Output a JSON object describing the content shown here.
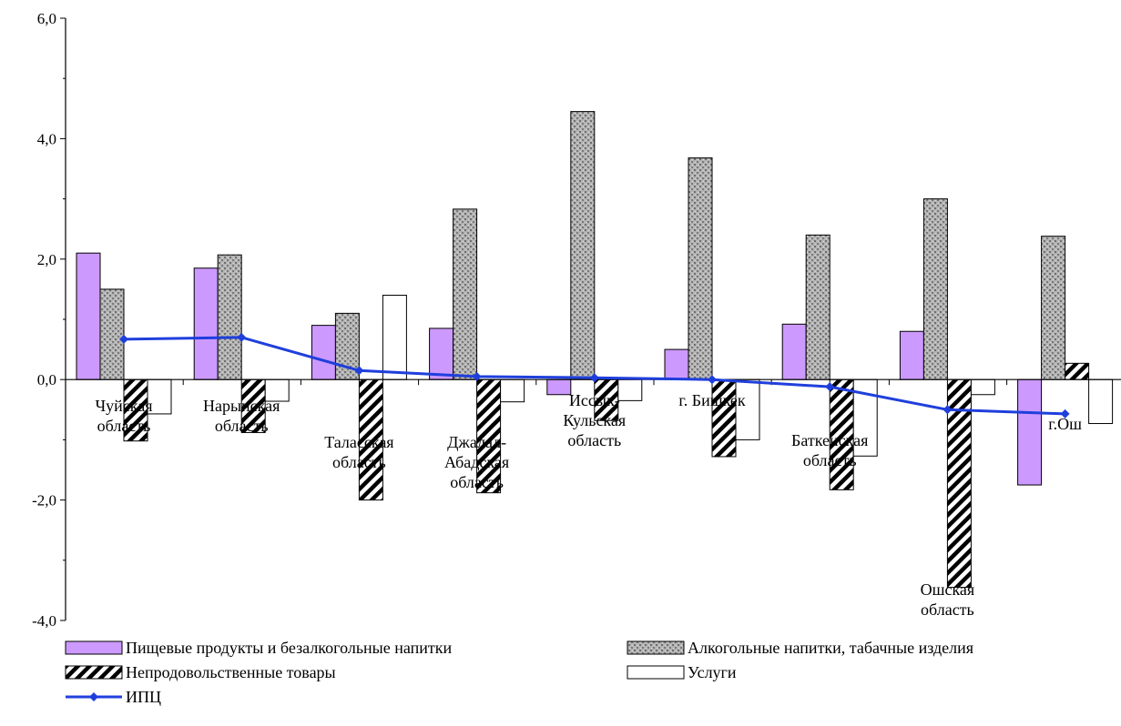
{
  "chart_data": {
    "type": "bar",
    "title": "",
    "xlabel": "",
    "ylabel": "",
    "ylim": [
      -4.0,
      6.0
    ],
    "yticks": [
      "6,0",
      "4,0",
      "2,0",
      "0,0",
      "-2,0",
      "-4,0"
    ],
    "grid": false,
    "legend_position": "bottom",
    "categories": [
      [
        "Чуйская",
        "область"
      ],
      [
        "Нарынская",
        "область"
      ],
      [
        "Таласская",
        "область"
      ],
      [
        "Джалал-",
        "Абадская",
        "область"
      ],
      [
        "Иссык-",
        "Кульская",
        "область"
      ],
      [
        "г. Бишкек"
      ],
      [
        "Баткенская",
        "область"
      ],
      [
        "Ошская",
        "область"
      ],
      [
        "г.Ош"
      ]
    ],
    "series": [
      {
        "name": "Пищевые продукты и безалкогольные напитки",
        "kind": "bar",
        "color": "#cc99ff",
        "values": [
          2.1,
          1.85,
          0.9,
          0.85,
          -0.25,
          0.5,
          0.92,
          0.8,
          -1.75
        ]
      },
      {
        "name": "Алкогольные напитки, табачные изделия",
        "kind": "bar",
        "color": "#a8a8a8",
        "values": [
          1.5,
          2.07,
          1.1,
          2.83,
          4.45,
          3.68,
          2.4,
          3.0,
          2.38
        ]
      },
      {
        "name": "Непродовольственные товары",
        "kind": "bar",
        "color": "#000000",
        "values": [
          -1.02,
          -0.88,
          -2.0,
          -1.88,
          -0.68,
          -1.28,
          -1.83,
          -3.45,
          0.27
        ]
      },
      {
        "name": "Услуги",
        "kind": "bar",
        "color": "#ffffff",
        "values": [
          -0.57,
          -0.36,
          1.4,
          -0.37,
          -0.35,
          -1.0,
          -1.27,
          -0.25,
          -0.73
        ]
      },
      {
        "name": "ИПЦ",
        "kind": "line",
        "color": "#1f3fdc",
        "values": [
          0.67,
          0.7,
          0.15,
          0.05,
          0.03,
          0.0,
          -0.12,
          -0.5,
          -0.57
        ]
      }
    ]
  }
}
